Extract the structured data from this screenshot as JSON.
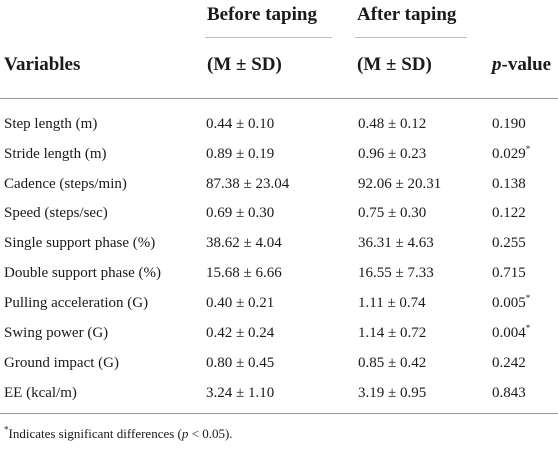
{
  "table": {
    "header": {
      "before_top": "Before taping",
      "after_top": "After taping",
      "variables": "Variables",
      "before_sub": "(M ± SD)",
      "after_sub": "(M ± SD)",
      "pvalue_p": "p",
      "pvalue_rest": "-value"
    },
    "rows": [
      {
        "variable": "Step length (m)",
        "before": "0.44 ± 0.10",
        "after": "0.48 ± 0.12",
        "p": "0.190",
        "sig": ""
      },
      {
        "variable": "Stride length (m)",
        "before": "0.89 ± 0.19",
        "after": "0.96 ± 0.23",
        "p": "0.029",
        "sig": "*"
      },
      {
        "variable": "Cadence (steps/min)",
        "before": "87.38 ± 23.04",
        "after": "92.06 ± 20.31",
        "p": "0.138",
        "sig": ""
      },
      {
        "variable": "Speed (steps/sec)",
        "before": "0.69 ± 0.30",
        "after": "0.75 ± 0.30",
        "p": "0.122",
        "sig": ""
      },
      {
        "variable": "Single support phase (%)",
        "before": "38.62 ± 4.04",
        "after": "36.31 ± 4.63",
        "p": "0.255",
        "sig": ""
      },
      {
        "variable": "Double support phase (%)",
        "before": "15.68 ± 6.66",
        "after": "16.55 ± 7.33",
        "p": "0.715",
        "sig": ""
      },
      {
        "variable": "Pulling acceleration (G)",
        "before": "0.40 ± 0.21",
        "after": "1.11 ± 0.74",
        "p": "0.005",
        "sig": "*"
      },
      {
        "variable": "Swing power (G)",
        "before": "0.42 ± 0.24",
        "after": "1.14 ± 0.72",
        "p": "0.004",
        "sig": "*"
      },
      {
        "variable": "Ground impact (G)",
        "before": "0.80 ± 0.45",
        "after": "0.85 ± 0.42",
        "p": "0.242",
        "sig": ""
      },
      {
        "variable": "EE (kcal/m)",
        "before": "3.24 ± 1.10",
        "after": "3.19 ± 0.95",
        "p": "0.843",
        "sig": ""
      }
    ],
    "footnote": {
      "star": "*",
      "text_before": "Indicates significant differences (",
      "p_italic": "p",
      "text_after": " < 0.05)."
    }
  }
}
